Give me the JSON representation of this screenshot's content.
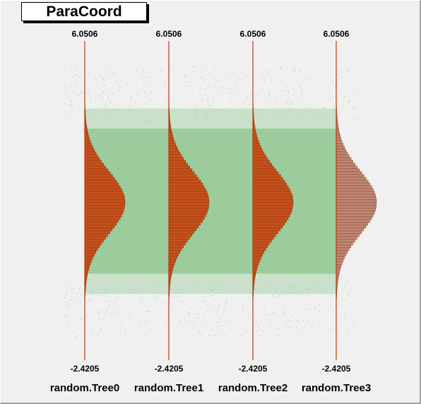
{
  "title": "ParaCoord",
  "colors": {
    "background": "#f0f0f0",
    "lines": "#9ccc9c",
    "axis": "#b83c10",
    "histogram_fill": "#c8521c",
    "histogram_last_fill": "#c08a78"
  },
  "chart_data": {
    "type": "parallel_coordinates",
    "title": "ParaCoord",
    "axes": [
      {
        "name": "random.Tree0",
        "min_label": "-2.4205",
        "max_label": "6.0506",
        "min": -2.4205,
        "max": 6.0506
      },
      {
        "name": "random.Tree1",
        "min_label": "-2.4205",
        "max_label": "6.0506",
        "min": -2.4205,
        "max": 6.0506
      },
      {
        "name": "random.Tree2",
        "min_label": "-2.4205",
        "max_label": "6.0506",
        "min": -2.4205,
        "max": 6.0506
      },
      {
        "name": "random.Tree3",
        "min_label": "-2.4205",
        "max_label": "6.0506",
        "min": -2.4205,
        "max": 6.0506
      }
    ],
    "axis_histogram": {
      "distribution": "gaussian",
      "center": 1.8,
      "sigma": 0.82
    },
    "grid": false
  }
}
